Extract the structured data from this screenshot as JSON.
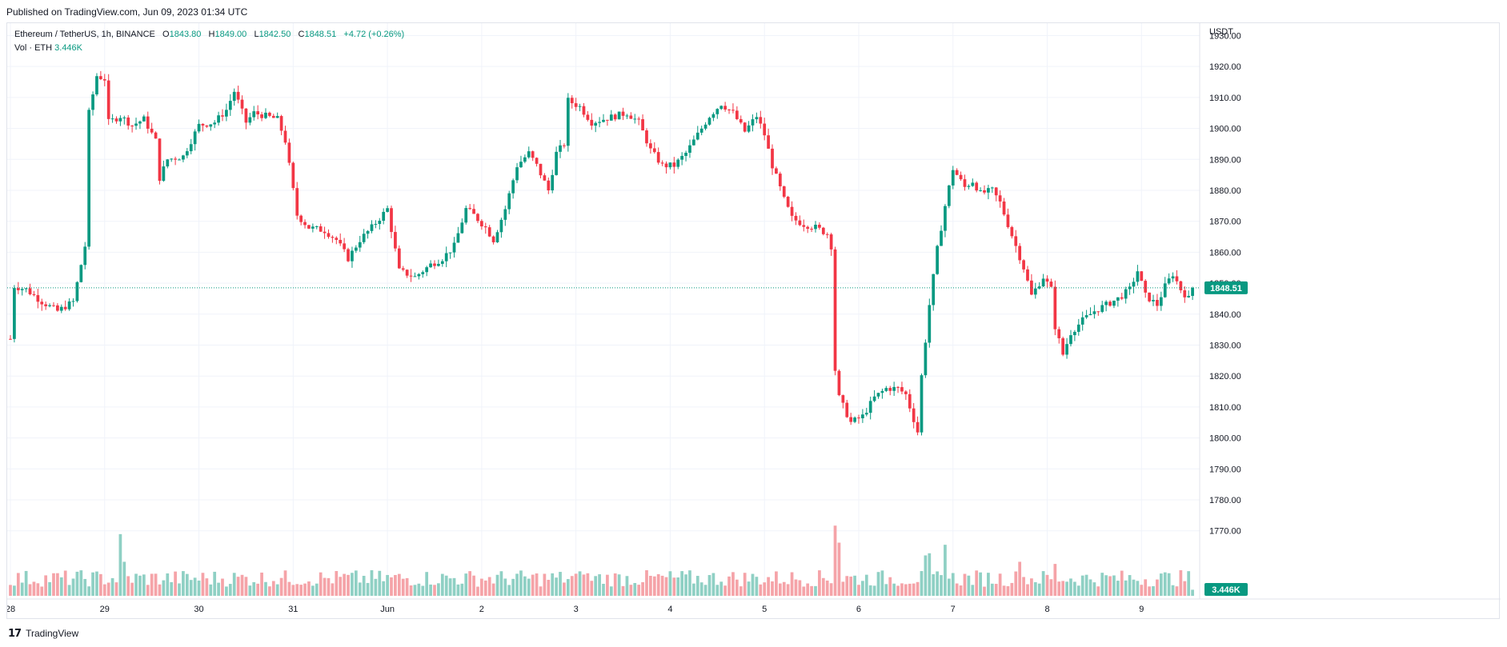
{
  "published": "Published on TradingView.com, Jun 09, 2023 01:34 UTC",
  "legend": {
    "symbol": "Ethereum / TetherUS, 1h, BINANCE",
    "o_label": "O",
    "o": "1843.80",
    "h_label": "H",
    "h": "1849.00",
    "l_label": "L",
    "l": "1842.50",
    "c_label": "C",
    "c": "1848.51",
    "change": "+4.72 (+0.26%)",
    "vol_label": "Vol · ETH",
    "vol": "3.446K"
  },
  "footer": {
    "brand": "TradingView",
    "logo_icon": "tradingview-logo-icon"
  },
  "colors": {
    "up": "#089981",
    "down": "#f23645",
    "vol_up": "#8fd0c4",
    "vol_down": "#f5a3a8",
    "grid": "#f0f3fa",
    "axis_text": "#131722"
  },
  "chart_data": {
    "type": "candlestick",
    "symbol": "Ethereum / TetherUS",
    "interval": "1h",
    "exchange": "BINANCE",
    "currency": "USDT",
    "ylim": [
      1780,
      1934
    ],
    "yticks": [
      1930,
      1920,
      1910,
      1900,
      1890,
      1880,
      1870,
      1860,
      1850,
      1840,
      1830,
      1820,
      1810,
      1800,
      1790,
      1780,
      1770
    ],
    "x_ticks": [
      "28",
      "29",
      "30",
      "31",
      "Jun",
      "2",
      "3",
      "4",
      "5",
      "6",
      "7",
      "8",
      "9"
    ],
    "last_price": 1848.51,
    "last_price_label": "1848.51",
    "last_volume_label": "3.446K",
    "approx_path": [
      [
        0,
        1832
      ],
      [
        1,
        1849
      ],
      [
        4,
        1848
      ],
      [
        8,
        1844
      ],
      [
        12,
        1841
      ],
      [
        16,
        1844
      ],
      [
        19,
        1862
      ],
      [
        20,
        1905
      ],
      [
        22,
        1917
      ],
      [
        24,
        1916
      ],
      [
        25,
        1902
      ],
      [
        28,
        1904
      ],
      [
        31,
        1901
      ],
      [
        34,
        1903
      ],
      [
        37,
        1896
      ],
      [
        38,
        1884
      ],
      [
        40,
        1890
      ],
      [
        44,
        1891
      ],
      [
        48,
        1901
      ],
      [
        52,
        1902
      ],
      [
        55,
        1906
      ],
      [
        57,
        1912
      ],
      [
        60,
        1902
      ],
      [
        62,
        1905
      ],
      [
        65,
        1904
      ],
      [
        68,
        1903
      ],
      [
        70,
        1896
      ],
      [
        73,
        1872
      ],
      [
        76,
        1868
      ],
      [
        80,
        1867
      ],
      [
        83,
        1864
      ],
      [
        86,
        1858
      ],
      [
        89,
        1864
      ],
      [
        92,
        1868
      ],
      [
        96,
        1874
      ],
      [
        99,
        1854
      ],
      [
        103,
        1852
      ],
      [
        107,
        1856
      ],
      [
        110,
        1858
      ],
      [
        113,
        1862
      ],
      [
        116,
        1874
      ],
      [
        118,
        1872
      ],
      [
        121,
        1868
      ],
      [
        123,
        1864
      ],
      [
        126,
        1874
      ],
      [
        129,
        1888
      ],
      [
        132,
        1892
      ],
      [
        134,
        1888
      ],
      [
        137,
        1880
      ],
      [
        139,
        1892
      ],
      [
        141,
        1895
      ],
      [
        142,
        1909
      ],
      [
        145,
        1907
      ],
      [
        148,
        1902
      ],
      [
        151,
        1903
      ],
      [
        154,
        1904
      ],
      [
        157,
        1905
      ],
      [
        160,
        1902
      ],
      [
        163,
        1893
      ],
      [
        166,
        1888
      ],
      [
        169,
        1888
      ],
      [
        172,
        1892
      ],
      [
        175,
        1898
      ],
      [
        178,
        1904
      ],
      [
        181,
        1908
      ],
      [
        184,
        1905
      ],
      [
        187,
        1899
      ],
      [
        190,
        1904
      ],
      [
        192,
        1898
      ],
      [
        194,
        1888
      ],
      [
        197,
        1877
      ],
      [
        199,
        1871
      ],
      [
        202,
        1869
      ],
      [
        205,
        1868
      ],
      [
        208,
        1866
      ],
      [
        209,
        1862
      ],
      [
        210,
        1822
      ],
      [
        211,
        1813
      ],
      [
        214,
        1805
      ],
      [
        217,
        1807
      ],
      [
        220,
        1813
      ],
      [
        223,
        1816
      ],
      [
        226,
        1816
      ],
      [
        228,
        1814
      ],
      [
        229,
        1810
      ],
      [
        231,
        1802
      ],
      [
        232,
        1820
      ],
      [
        234,
        1843
      ],
      [
        236,
        1861
      ],
      [
        238,
        1875
      ],
      [
        240,
        1887
      ],
      [
        243,
        1881
      ],
      [
        245,
        1883
      ],
      [
        247,
        1879
      ],
      [
        250,
        1880
      ],
      [
        252,
        1876
      ],
      [
        254,
        1869
      ],
      [
        256,
        1862
      ],
      [
        258,
        1855
      ],
      [
        260,
        1846
      ],
      [
        263,
        1852
      ],
      [
        265,
        1848
      ],
      [
        266,
        1836
      ],
      [
        268,
        1827
      ],
      [
        270,
        1834
      ],
      [
        273,
        1838
      ],
      [
        276,
        1841
      ],
      [
        279,
        1843
      ],
      [
        282,
        1845
      ],
      [
        285,
        1848
      ],
      [
        287,
        1854
      ],
      [
        289,
        1846
      ],
      [
        292,
        1843
      ],
      [
        294,
        1849
      ],
      [
        296,
        1853
      ],
      [
        298,
        1848
      ],
      [
        300,
        1845
      ],
      [
        301,
        1849
      ]
    ],
    "candle_count": 302,
    "volume_spikes": [
      [
        28,
        2.9
      ],
      [
        29,
        1.6
      ],
      [
        146,
        1.0
      ],
      [
        210,
        3.3
      ],
      [
        211,
        2.5
      ],
      [
        233,
        1.9
      ],
      [
        234,
        2.0
      ],
      [
        238,
        2.4
      ],
      [
        257,
        1.6
      ],
      [
        266,
        1.5
      ]
    ]
  }
}
